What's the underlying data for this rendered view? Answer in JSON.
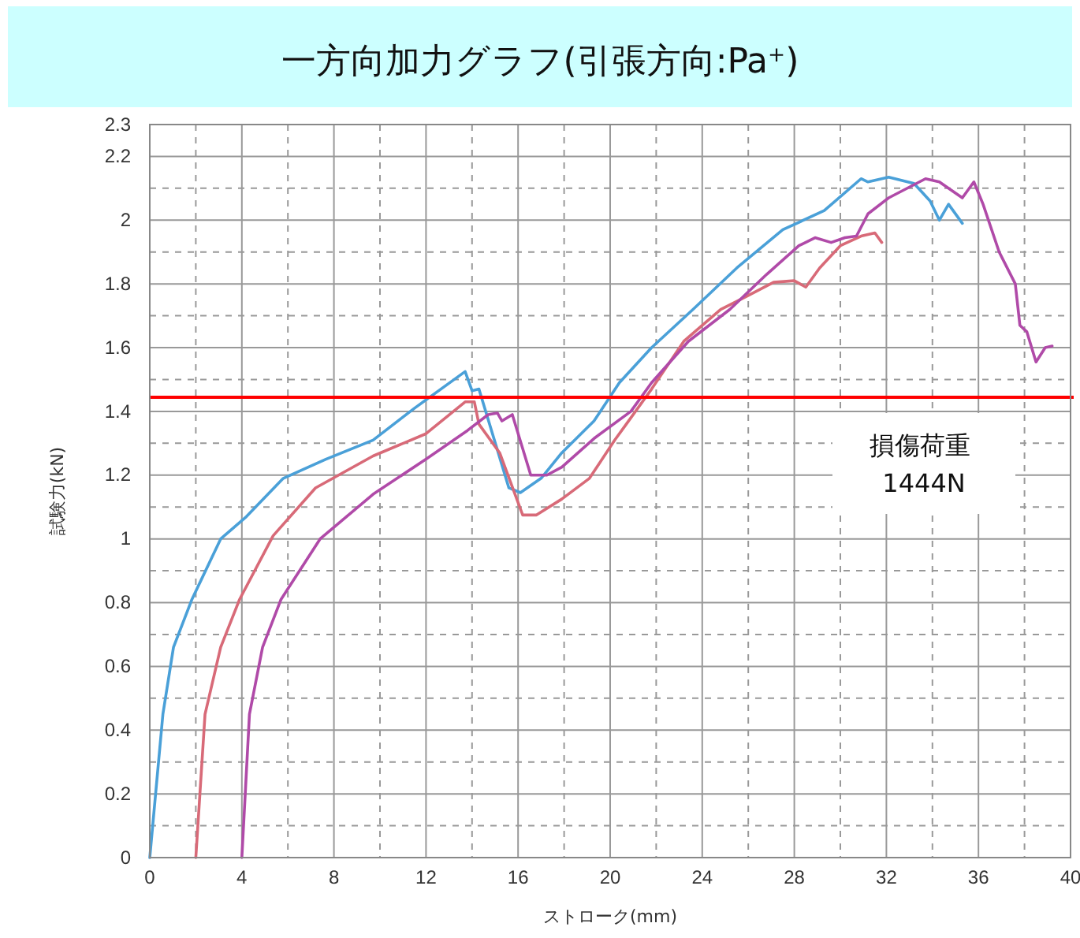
{
  "chart_data": {
    "type": "line",
    "title": "一方向加力グラフ(引張方向:Pa$^{+}$)",
    "xlabel": "ストローク(mm)",
    "ylabel": "試験力(kN)",
    "xlim": [
      0,
      40
    ],
    "xticks": [
      0,
      4,
      8,
      12,
      16,
      20,
      24,
      28,
      32,
      36,
      40
    ],
    "ylim": [
      0,
      2.3
    ],
    "yticks": [
      0,
      0.2,
      0.4,
      0.6,
      0.8,
      1,
      1.2,
      1.4,
      1.6,
      1.8,
      2,
      2.2,
      2.3
    ],
    "grid": true,
    "marker": "none",
    "line_style": "solid",
    "ref_lines": [
      {
        "axis": "y",
        "value": 1.444,
        "label": "損傷荷重 1444N",
        "color": "#ff0000"
      }
    ],
    "series": [
      {
        "color": "#4aa0d8",
        "x": [
          0,
          0.57,
          1.03,
          1.83,
          3.08,
          4.2,
          5.8,
          7.65,
          9.7,
          11.5,
          13.7,
          14.0,
          14.3,
          15.6,
          16.1,
          17.0,
          17.9,
          19.3,
          20.4,
          21.8,
          23.6,
          25.5,
          27.5,
          29.3,
          30.9,
          31.2,
          32.1,
          33.2,
          33.9,
          34.3,
          34.7,
          35.3
        ],
        "values": [
          0,
          0.45,
          0.66,
          0.81,
          1.0,
          1.07,
          1.19,
          1.25,
          1.31,
          1.41,
          1.525,
          1.465,
          1.47,
          1.16,
          1.145,
          1.19,
          1.27,
          1.37,
          1.49,
          1.6,
          1.72,
          1.85,
          1.97,
          2.03,
          2.13,
          2.12,
          2.135,
          2.115,
          2.06,
          2.0,
          2.05,
          1.99
        ]
      },
      {
        "color": "#d86a78",
        "x": [
          2,
          2.4,
          3.08,
          3.9,
          5.36,
          7.2,
          9.7,
          12.0,
          13.7,
          14.1,
          14.3,
          15.2,
          16.2,
          16.8,
          17.9,
          19.1,
          20.2,
          20.7,
          21.8,
          23.2,
          24.8,
          25.9,
          27.1,
          28.0,
          28.5,
          29.1,
          30.0,
          30.9,
          31.5,
          31.8
        ],
        "values": [
          0,
          0.45,
          0.66,
          0.81,
          1.01,
          1.16,
          1.26,
          1.33,
          1.43,
          1.43,
          1.36,
          1.27,
          1.075,
          1.075,
          1.125,
          1.19,
          1.31,
          1.36,
          1.47,
          1.62,
          1.72,
          1.76,
          1.805,
          1.81,
          1.79,
          1.85,
          1.92,
          1.95,
          1.96,
          1.93
        ]
      },
      {
        "color": "#b04aa8",
        "x": [
          4,
          4.33,
          4.9,
          5.7,
          7.4,
          9.7,
          12.0,
          13.8,
          14.7,
          15.1,
          15.3,
          15.75,
          16.55,
          17.25,
          17.9,
          19.3,
          20.9,
          21.8,
          23.4,
          25.2,
          26.8,
          28.2,
          28.9,
          29.6,
          30.2,
          30.7,
          31.2,
          32.1,
          33.7,
          34.3,
          35.3,
          35.8,
          36.2,
          36.9,
          37.6,
          37.8,
          38.1,
          38.5,
          38.9,
          39.2
        ],
        "values": [
          0,
          0.45,
          0.66,
          0.81,
          1.0,
          1.14,
          1.25,
          1.34,
          1.39,
          1.395,
          1.37,
          1.39,
          1.2,
          1.2,
          1.225,
          1.315,
          1.4,
          1.49,
          1.62,
          1.72,
          1.83,
          1.92,
          1.945,
          1.93,
          1.945,
          1.95,
          2.02,
          2.07,
          2.13,
          2.12,
          2.07,
          2.12,
          2.05,
          1.9,
          1.8,
          1.67,
          1.65,
          1.555,
          1.6,
          1.605
        ]
      }
    ]
  }
}
